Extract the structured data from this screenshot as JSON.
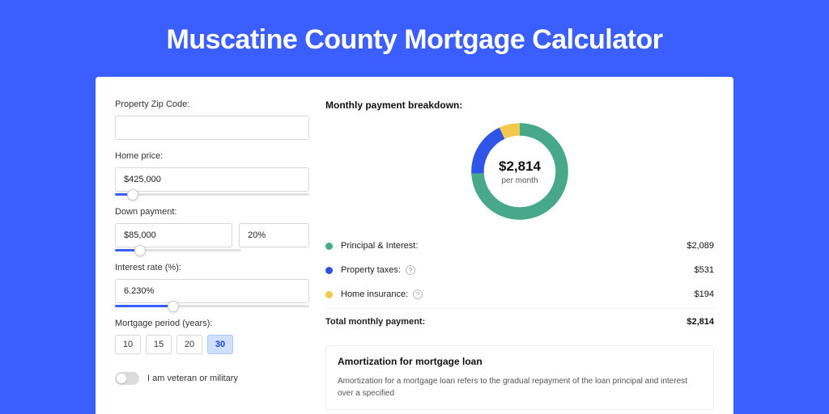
{
  "page": {
    "title": "Muscatine County Mortgage Calculator",
    "background_color": "#3a5eff",
    "card_background": "#ffffff"
  },
  "form": {
    "zip": {
      "label": "Property Zip Code:",
      "value": ""
    },
    "home_price": {
      "label": "Home price:",
      "value": "$425,000",
      "slider_pct": 9
    },
    "down_payment": {
      "label": "Down payment:",
      "amount": "$85,000",
      "percent": "20%",
      "slider_pct": 20
    },
    "interest_rate": {
      "label": "Interest rate (%):",
      "value": "6.230%",
      "slider_pct": 30
    },
    "period": {
      "label": "Mortgage period (years):",
      "options": [
        "10",
        "15",
        "20",
        "30"
      ],
      "selected": "30"
    },
    "veteran": {
      "label": "I am veteran or military",
      "checked": false
    }
  },
  "breakdown": {
    "title": "Monthly payment breakdown:",
    "donut": {
      "center_value": "$2,814",
      "center_sub": "per month",
      "slices": [
        {
          "key": "principal_interest",
          "value": 2089,
          "color": "#47a88a"
        },
        {
          "key": "property_taxes",
          "value": 531,
          "color": "#2f55e6"
        },
        {
          "key": "home_insurance",
          "value": 194,
          "color": "#f3c94b"
        }
      ],
      "ring_thickness_pct": 26
    },
    "rows": [
      {
        "dot_color": "#47a88a",
        "label": "Principal & Interest:",
        "value": "$2,089",
        "info": false
      },
      {
        "dot_color": "#2f55e6",
        "label": "Property taxes:",
        "value": "$531",
        "info": true
      },
      {
        "dot_color": "#f3c94b",
        "label": "Home insurance:",
        "value": "$194",
        "info": true
      }
    ],
    "total": {
      "label": "Total monthly payment:",
      "value": "$2,814"
    }
  },
  "amortization": {
    "title": "Amortization for mortgage loan",
    "text": "Amortization for a mortgage loan refers to the gradual repayment of the loan principal and interest over a specified"
  }
}
